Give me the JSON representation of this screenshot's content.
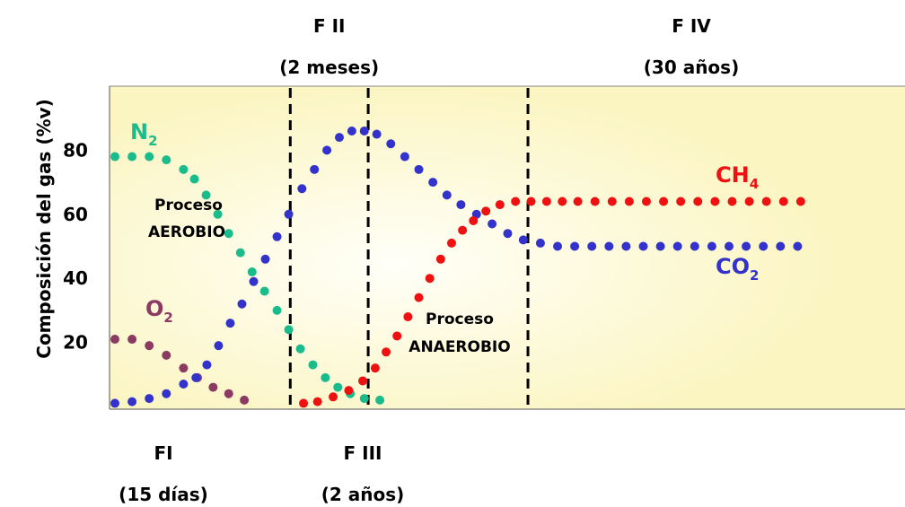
{
  "chart_data": {
    "type": "scatter",
    "title": "",
    "xlabel": "",
    "ylabel": "Composición del gas (%v)",
    "xlim": [
      0,
      100
    ],
    "ylim": [
      0,
      100
    ],
    "y_ticks": [
      20,
      40,
      60,
      80
    ],
    "grid": false,
    "phases": {
      "top": [
        {
          "name": "F II",
          "duration": "(2 meses)"
        },
        {
          "name": "F IV",
          "duration": "(30 años)"
        }
      ],
      "bottom": [
        {
          "name": "FI",
          "duration": "(15 días)"
        },
        {
          "name": "F III",
          "duration": "(2 años)"
        }
      ],
      "boundaries": [
        22.5,
        32.5,
        53
      ]
    },
    "annotations": {
      "aerobic": [
        "Proceso",
        "AEROBIO"
      ],
      "anaerobic": [
        "Proceso",
        "ANAEROBIO"
      ]
    },
    "series": [
      {
        "name": "N2",
        "label_main": "N",
        "label_sub": "2",
        "color": "#1ABC8C",
        "points": [
          [
            0,
            78
          ],
          [
            2.2,
            78
          ],
          [
            4.4,
            78
          ],
          [
            6.6,
            77
          ],
          [
            8.8,
            74
          ],
          [
            10.2,
            71
          ],
          [
            11.7,
            66
          ],
          [
            13.2,
            60
          ],
          [
            14.6,
            54
          ],
          [
            16.1,
            48
          ],
          [
            17.6,
            42
          ],
          [
            19.2,
            36
          ],
          [
            20.8,
            30
          ],
          [
            22.3,
            24
          ],
          [
            23.8,
            18
          ],
          [
            25.4,
            13
          ],
          [
            27.0,
            9
          ],
          [
            28.6,
            6
          ],
          [
            30.2,
            4
          ],
          [
            32.0,
            2.5
          ],
          [
            34.0,
            2
          ]
        ]
      },
      {
        "name": "O2",
        "label_main": "O",
        "label_sub": "2",
        "color": "#8B3A62",
        "points": [
          [
            0,
            21
          ],
          [
            2.2,
            21
          ],
          [
            4.4,
            19
          ],
          [
            6.6,
            16
          ],
          [
            8.8,
            12
          ],
          [
            10.6,
            9
          ],
          [
            12.6,
            6
          ],
          [
            14.6,
            4
          ],
          [
            16.6,
            2
          ]
        ]
      },
      {
        "name": "CO2",
        "label_main": "CO",
        "label_sub": "2",
        "color": "#3333CC",
        "points": [
          [
            0,
            1
          ],
          [
            2.2,
            1.5
          ],
          [
            4.4,
            2.5
          ],
          [
            6.6,
            4
          ],
          [
            8.8,
            7
          ],
          [
            10.4,
            9
          ],
          [
            11.8,
            13
          ],
          [
            13.3,
            19
          ],
          [
            14.8,
            26
          ],
          [
            16.3,
            32
          ],
          [
            17.8,
            39
          ],
          [
            19.3,
            46
          ],
          [
            20.8,
            53
          ],
          [
            22.3,
            60
          ],
          [
            24.0,
            68
          ],
          [
            25.6,
            74
          ],
          [
            27.2,
            80
          ],
          [
            28.8,
            84
          ],
          [
            30.4,
            86
          ],
          [
            32.0,
            86
          ],
          [
            33.6,
            85
          ],
          [
            35.4,
            82
          ],
          [
            37.2,
            78
          ],
          [
            39.0,
            74
          ],
          [
            40.8,
            70
          ],
          [
            42.6,
            66
          ],
          [
            44.4,
            63
          ],
          [
            46.4,
            60
          ],
          [
            48.4,
            57
          ],
          [
            50.4,
            54
          ],
          [
            52.4,
            52
          ],
          [
            54.6,
            51
          ],
          [
            56.8,
            50
          ],
          [
            59.0,
            50
          ],
          [
            61.2,
            50
          ],
          [
            63.4,
            50
          ],
          [
            65.6,
            50
          ],
          [
            67.8,
            50
          ],
          [
            70.0,
            50
          ],
          [
            72.2,
            50
          ],
          [
            74.4,
            50
          ],
          [
            76.6,
            50
          ],
          [
            78.8,
            50
          ],
          [
            81.0,
            50
          ],
          [
            83.2,
            50
          ],
          [
            85.4,
            50
          ],
          [
            87.6,
            50
          ]
        ]
      },
      {
        "name": "CH4",
        "label_main": "CH",
        "label_sub": "4",
        "color": "#EE1111",
        "points": [
          [
            24.2,
            1
          ],
          [
            26.0,
            1.5
          ],
          [
            28.0,
            3
          ],
          [
            30.0,
            5
          ],
          [
            31.8,
            8
          ],
          [
            33.4,
            12
          ],
          [
            34.8,
            17
          ],
          [
            36.2,
            22
          ],
          [
            37.6,
            28
          ],
          [
            39.0,
            34
          ],
          [
            40.4,
            40
          ],
          [
            41.8,
            46
          ],
          [
            43.2,
            51
          ],
          [
            44.6,
            55
          ],
          [
            46.0,
            58
          ],
          [
            47.6,
            61
          ],
          [
            49.4,
            63
          ],
          [
            51.4,
            64
          ],
          [
            53.4,
            64
          ],
          [
            55.4,
            64
          ],
          [
            57.4,
            64
          ],
          [
            59.4,
            64
          ],
          [
            61.6,
            64
          ],
          [
            63.8,
            64
          ],
          [
            66.0,
            64
          ],
          [
            68.2,
            64
          ],
          [
            70.4,
            64
          ],
          [
            72.6,
            64
          ],
          [
            74.8,
            64
          ],
          [
            77.0,
            64
          ],
          [
            79.2,
            64
          ],
          [
            81.4,
            64
          ],
          [
            83.6,
            64
          ],
          [
            85.8,
            64
          ],
          [
            88.0,
            64
          ]
        ]
      }
    ]
  }
}
